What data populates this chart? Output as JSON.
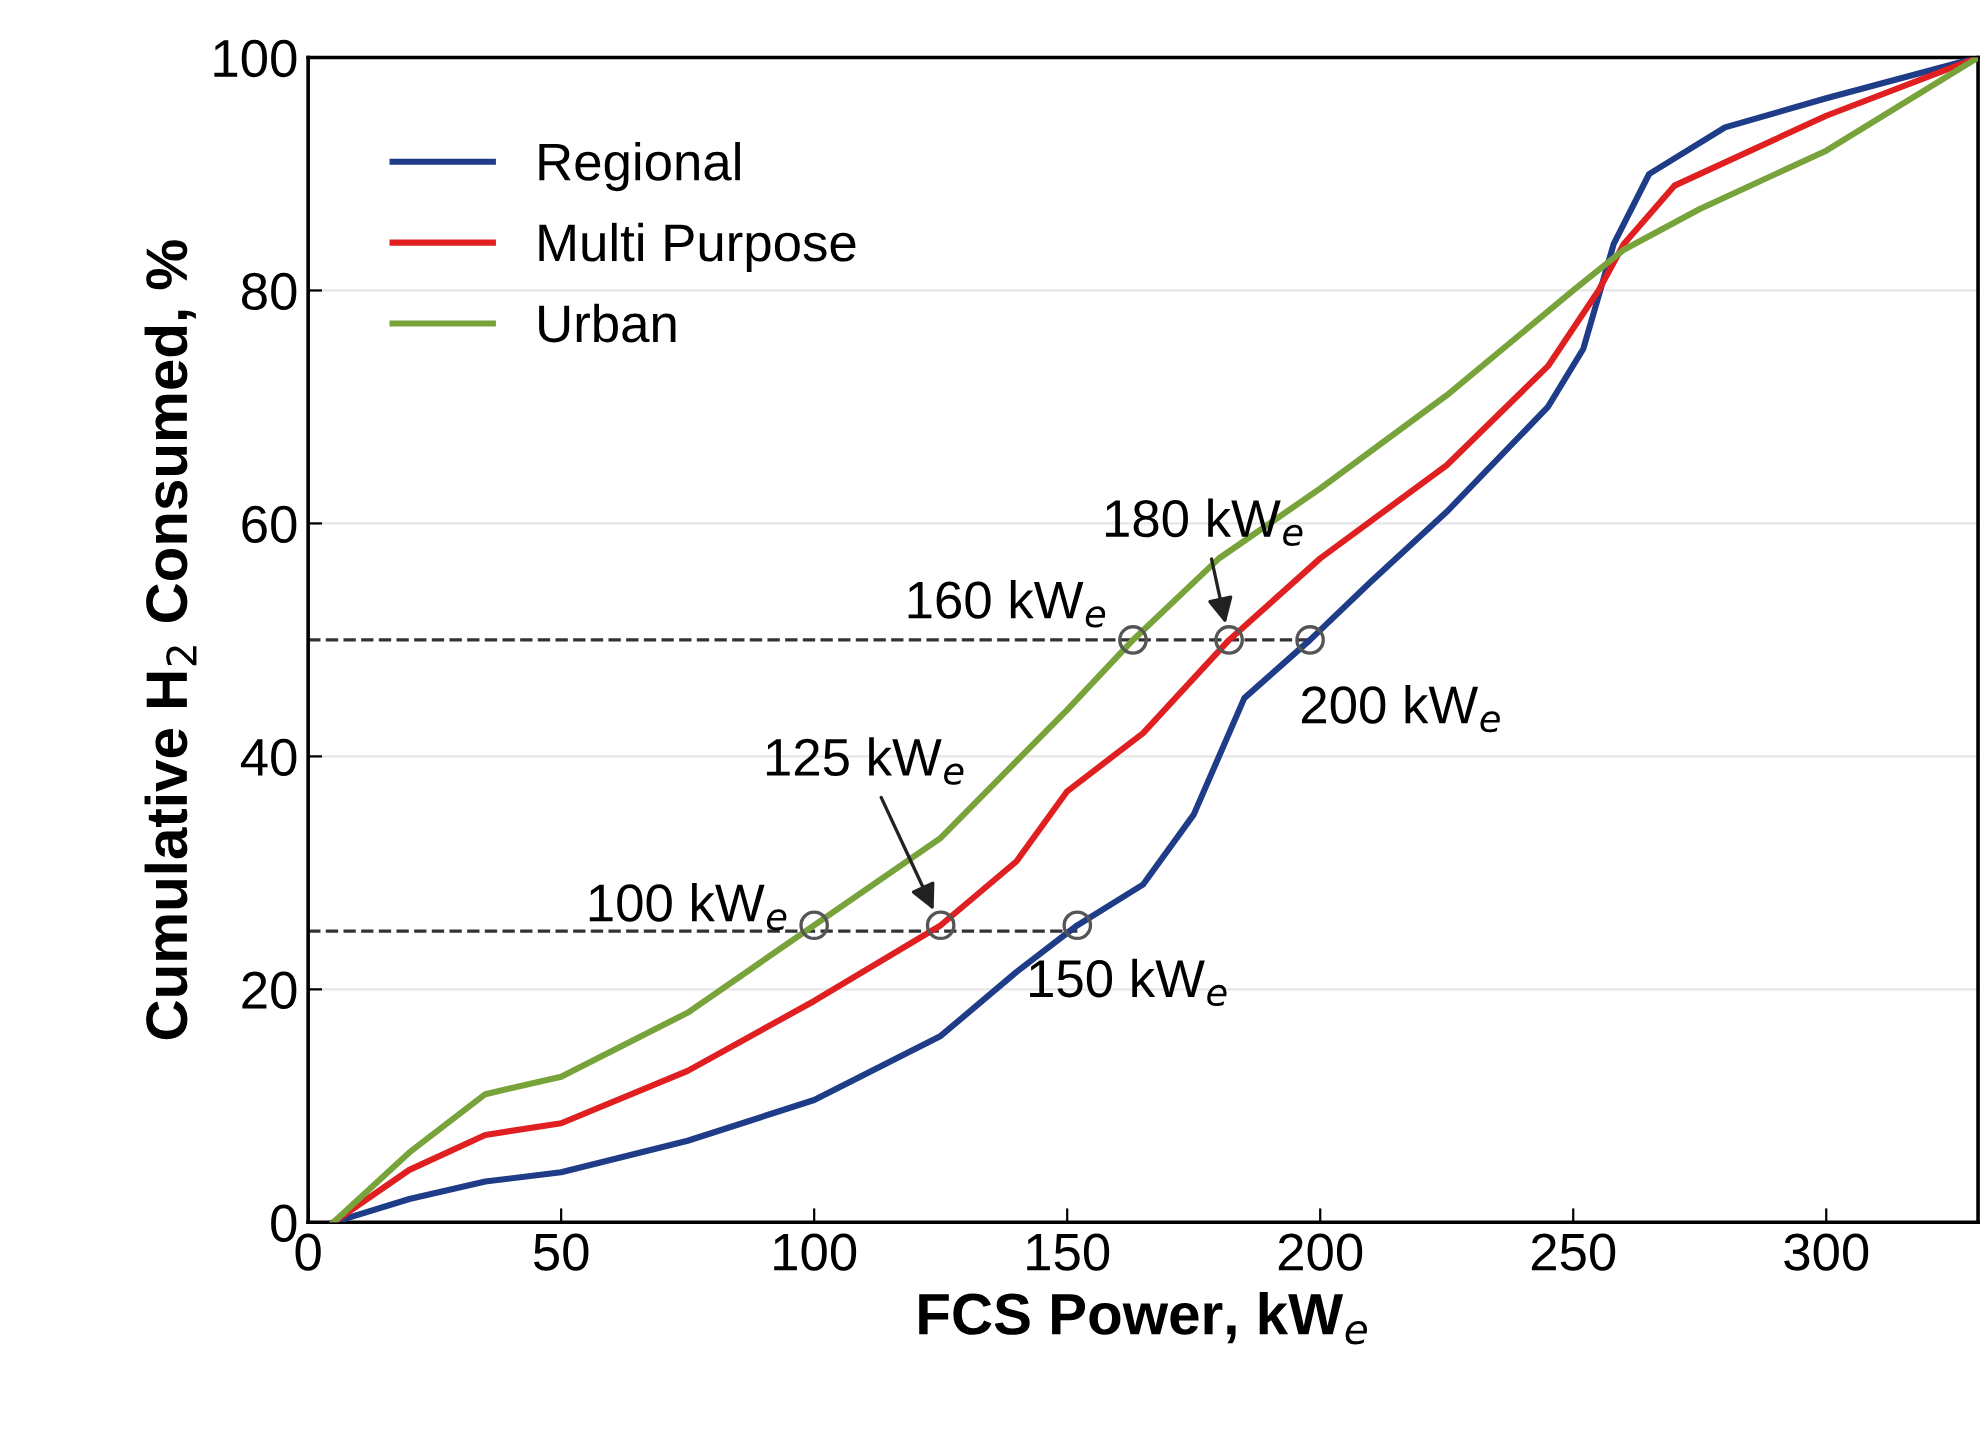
{
  "chart_data": {
    "type": "line",
    "xlabel": "FCS Power, kW$_{e}$",
    "ylabel": "Cumulative H$_{2}$ Consumed, %",
    "xlim": [
      0,
      330
    ],
    "xticks": [
      0,
      50,
      100,
      150,
      200,
      250,
      300
    ],
    "ylim": [
      0,
      100
    ],
    "yticks": [
      0,
      20,
      40,
      60,
      80,
      100
    ],
    "grid": "y",
    "legend": "top left",
    "series": [
      {
        "name": "Regional",
        "color": "#1f3c88",
        "x": [
          5,
          20,
          35,
          50,
          75,
          100,
          125,
          140,
          152,
          165,
          175,
          185,
          198,
          210,
          225,
          245,
          252,
          258,
          265,
          280,
          300,
          330
        ],
        "values": [
          0,
          2,
          3.5,
          4.3,
          7,
          10.5,
          16,
          21.5,
          25.5,
          29,
          35,
          45,
          50,
          55,
          61,
          70,
          75,
          84,
          90,
          94,
          96.5,
          100
        ]
      },
      {
        "name": "Multi Purpose",
        "color": "#e02020",
        "x": [
          5,
          20,
          35,
          50,
          75,
          100,
          125,
          140,
          150,
          165,
          182,
          200,
          225,
          245,
          255,
          260,
          270,
          300,
          330
        ],
        "values": [
          0,
          4.5,
          7.5,
          8.5,
          13,
          19,
          25.5,
          31,
          37,
          42,
          50,
          57,
          65,
          73.5,
          80,
          84,
          89,
          95,
          100
        ]
      },
      {
        "name": "Urban",
        "color": "#77a33a",
        "x": [
          5,
          20,
          35,
          50,
          75,
          100,
          125,
          150,
          163,
          180,
          200,
          225,
          250,
          260,
          275,
          300,
          330
        ],
        "values": [
          0,
          6,
          11,
          12.5,
          18,
          25.5,
          33,
          44,
          50,
          57,
          63,
          71,
          80,
          83.5,
          87,
          92,
          100
        ]
      },
      {
        "type": "line",
        "color": "#333333",
        "line_style": "dashed",
        "marker": "none",
        "x": [
          0,
          152
        ],
        "values": [
          25,
          25
        ]
      },
      {
        "type": "line",
        "color": "#333333",
        "line_style": "dashed",
        "marker": "none",
        "x": [
          0,
          198
        ],
        "values": [
          50,
          50
        ]
      },
      {
        "type": "scatter",
        "color": "#555555",
        "marker": "circle",
        "x": [
          100,
          125,
          152,
          163,
          182,
          198
        ],
        "values": [
          25.5,
          25.5,
          25.5,
          50,
          50,
          50
        ]
      }
    ],
    "annotations": [
      {
        "text": "100 kW$_{e}$",
        "x": 100,
        "y": 25.5
      },
      {
        "text": "125 kW$_{e}$",
        "x": 125,
        "y": 25.5
      },
      {
        "text": "150 kW$_{e}$",
        "x": 152,
        "y": 25.5
      },
      {
        "text": "160 kW$_{e}$",
        "x": 163,
        "y": 50
      },
      {
        "text": "180 kW$_{e}$",
        "x": 182,
        "y": 50
      },
      {
        "text": "200 kW$_{e}$",
        "x": 198,
        "y": 50
      }
    ]
  }
}
